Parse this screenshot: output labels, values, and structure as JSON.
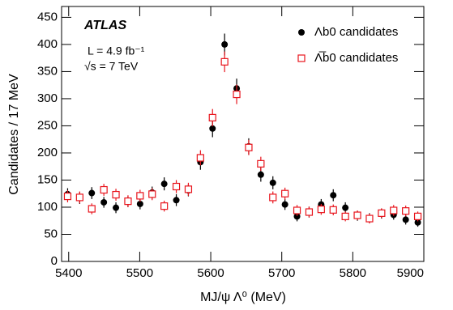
{
  "chart_data": {
    "type": "scatter",
    "annotations": [
      "ATLAS",
      "L = 4.9 fb⁻¹",
      "√s = 7 TeV"
    ],
    "x_label": "MJ/ψ Λ⁰ (MeV)",
    "y_label": "Candidates / 17 MeV",
    "x": [
      5398.5,
      5415.5,
      5432.5,
      5449.5,
      5466.5,
      5483.5,
      5500.5,
      5517.5,
      5534.5,
      5551.5,
      5568.5,
      5585.5,
      5602.5,
      5619.5,
      5636.5,
      5653.5,
      5670.5,
      5687.5,
      5704.5,
      5721.5,
      5738.5,
      5755.5,
      5772.5,
      5789.5,
      5806.5,
      5823.5,
      5840.5,
      5857.5,
      5874.5,
      5891.5
    ],
    "series": [
      {
        "name": "Λb0 candidates",
        "color": "#000000",
        "marker": "circle",
        "values": [
          124,
          117,
          126,
          109,
          99,
          110,
          106,
          127,
          143,
          113,
          131,
          183,
          245,
          400,
          319,
          212,
          160,
          145,
          105,
          83,
          91,
          105,
          122,
          99,
          84,
          80,
          88,
          86,
          77,
          72
        ],
        "errors": [
          11,
          11,
          11,
          10,
          10,
          10,
          10,
          11,
          12,
          11,
          11,
          14,
          16,
          20,
          18,
          15,
          13,
          12,
          10,
          9,
          10,
          10,
          11,
          10,
          9,
          9,
          9,
          9,
          9,
          8
        ]
      },
      {
        "name": "Λ̅b0 candidates",
        "color": "#e8141c",
        "marker": "open-square",
        "values": [
          120,
          118,
          97,
          132,
          123,
          111,
          121,
          124,
          102,
          138,
          133,
          191,
          265,
          368,
          308,
          210,
          180,
          118,
          125,
          94,
          91,
          96,
          95,
          83,
          85,
          79,
          89,
          94,
          93,
          83
        ],
        "errors": [
          11,
          11,
          10,
          11,
          11,
          11,
          11,
          11,
          10,
          12,
          12,
          14,
          16,
          19,
          18,
          14,
          13,
          11,
          11,
          10,
          10,
          10,
          10,
          9,
          9,
          9,
          9,
          10,
          10,
          9
        ]
      }
    ],
    "xlim": [
      5390,
      5900
    ],
    "xticks": [
      5400,
      5500,
      5600,
      5700,
      5800,
      5900
    ],
    "ylim": [
      0,
      470
    ],
    "yticks": [
      0,
      50,
      100,
      150,
      200,
      250,
      300,
      350,
      400,
      450
    ]
  }
}
